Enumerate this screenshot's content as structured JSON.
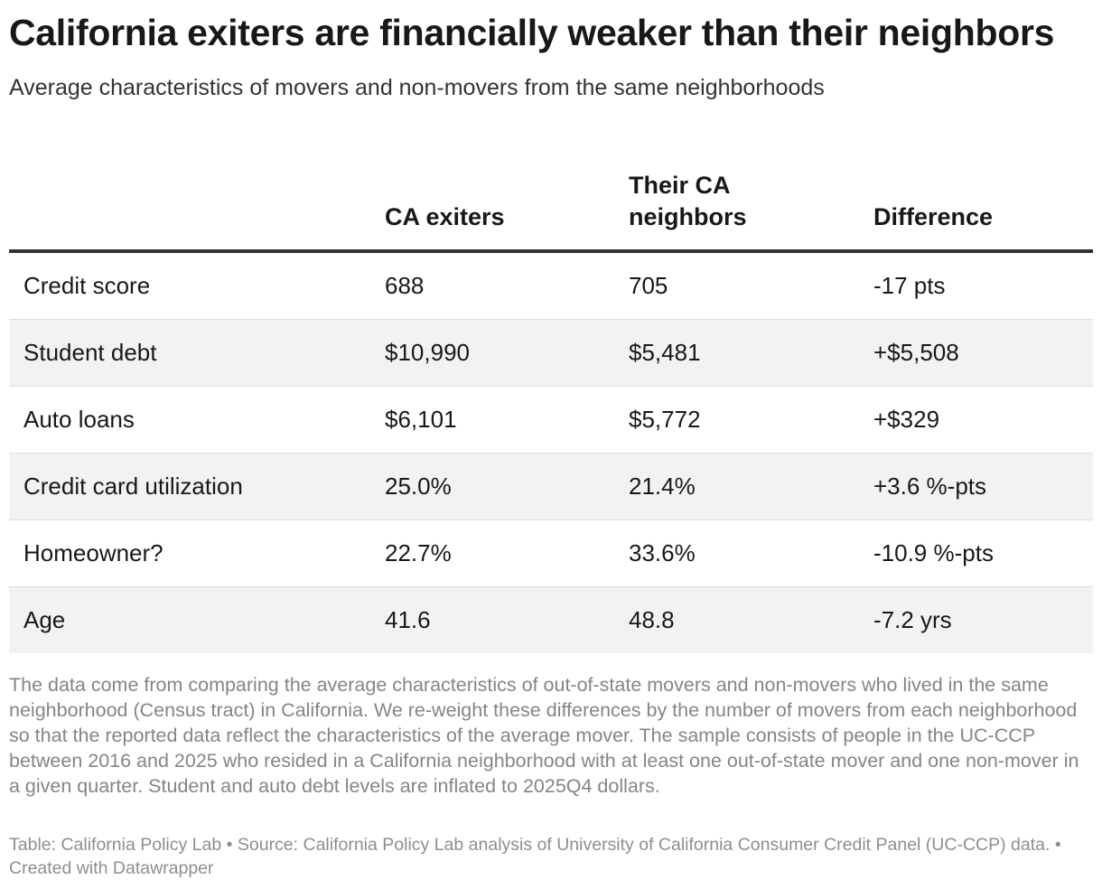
{
  "title": "California exiters are financially weaker than their neighbors",
  "subtitle": "Average characteristics of movers and non-movers from the same neighborhoods",
  "chart_data": {
    "type": "table",
    "columns": [
      "",
      "CA exiters",
      "Their CA neighbors",
      "Difference"
    ],
    "rows": [
      {
        "label": "Credit score",
        "values": [
          "688",
          "705",
          "-17 pts"
        ]
      },
      {
        "label": "Student debt",
        "values": [
          "$10,990",
          "$5,481",
          "+$5,508"
        ]
      },
      {
        "label": "Auto loans",
        "values": [
          "$6,101",
          "$5,772",
          "+$329"
        ]
      },
      {
        "label": "Credit card utilization",
        "values": [
          "25.0%",
          "21.4%",
          "+3.6 %-pts"
        ]
      },
      {
        "label": "Homeowner?",
        "values": [
          "22.7%",
          "33.6%",
          "-10.9 %-pts"
        ]
      },
      {
        "label": "Age",
        "values": [
          "41.6",
          "48.8",
          "-7.2 yrs"
        ]
      }
    ]
  },
  "notes": "The data come from comparing the average characteristics of out-of-state movers and non-movers who lived in the same neighborhood (Census tract) in California. We re-weight these differences by the number of movers from each neighborhood so that the reported data reflect the characteristics of the average mover. The sample consists of people in the UC-CCP between 2016 and 2025 who resided in a California neighborhood with at least one out-of-state mover and one non-mover in a given quarter. Student and auto debt levels are inflated to 2025Q4 dollars.",
  "footer": "Table: California Policy Lab • Source: California Policy Lab analysis of University of California Consumer Credit Panel (UC-CCP) data. • Created with Datawrapper"
}
